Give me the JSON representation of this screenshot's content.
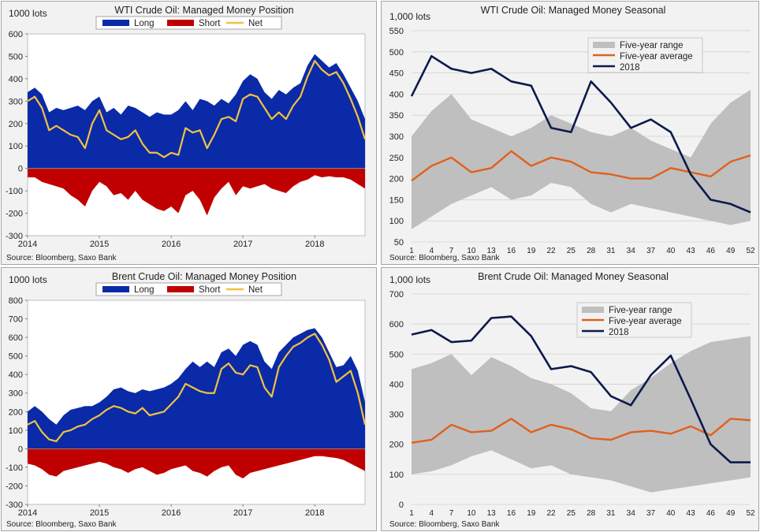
{
  "colors": {
    "long": "#0a2aa8",
    "short": "#c00000",
    "net": "#f3c23e",
    "range": "#bfbfbf",
    "avg": "#e0601c",
    "y2018": "#0c1a4c",
    "grid": "#d0d0d0"
  },
  "source": "Source: Bloomberg, Saxo Bank",
  "chart_data": [
    {
      "id": "wti_position",
      "type": "area",
      "title": "WTI Crude Oil: Managed Money Position",
      "unit": "1000 lots",
      "ylim": [
        -300,
        600
      ],
      "yticks": [
        -300,
        -200,
        -100,
        0,
        100,
        200,
        300,
        400,
        500,
        600
      ],
      "xlim": [
        2014.0,
        2018.7
      ],
      "xticks": [
        "2014",
        "2015",
        "2016",
        "2017",
        "2018"
      ],
      "legend": [
        "Long",
        "Short",
        "Net"
      ],
      "x": [
        2014.0,
        2014.1,
        2014.2,
        2014.3,
        2014.4,
        2014.5,
        2014.6,
        2014.7,
        2014.8,
        2014.9,
        2015.0,
        2015.1,
        2015.2,
        2015.3,
        2015.4,
        2015.5,
        2015.6,
        2015.7,
        2015.8,
        2015.9,
        2016.0,
        2016.1,
        2016.2,
        2016.3,
        2016.4,
        2016.5,
        2016.6,
        2016.7,
        2016.8,
        2016.9,
        2017.0,
        2017.1,
        2017.2,
        2017.3,
        2017.4,
        2017.5,
        2017.6,
        2017.7,
        2017.8,
        2017.9,
        2018.0,
        2018.1,
        2018.2,
        2018.3,
        2018.4,
        2018.5,
        2018.6,
        2018.7
      ],
      "series": [
        {
          "name": "Long",
          "values": [
            340,
            360,
            330,
            250,
            270,
            260,
            270,
            280,
            260,
            300,
            320,
            250,
            270,
            240,
            280,
            270,
            250,
            230,
            250,
            240,
            240,
            260,
            300,
            260,
            310,
            300,
            280,
            310,
            290,
            330,
            390,
            420,
            400,
            340,
            310,
            350,
            330,
            360,
            380,
            460,
            510,
            480,
            450,
            470,
            420,
            360,
            300,
            220
          ]
        },
        {
          "name": "Short",
          "values": [
            -40,
            -40,
            -60,
            -70,
            -80,
            -90,
            -120,
            -140,
            -170,
            -100,
            -60,
            -80,
            -120,
            -110,
            -140,
            -100,
            -140,
            -160,
            -180,
            -190,
            -170,
            -200,
            -120,
            -100,
            -140,
            -210,
            -130,
            -90,
            -60,
            -120,
            -80,
            -90,
            -80,
            -70,
            -90,
            -100,
            -110,
            -80,
            -60,
            -50,
            -30,
            -40,
            -35,
            -40,
            -40,
            -50,
            -70,
            -90
          ]
        },
        {
          "name": "Net",
          "values": [
            300,
            320,
            270,
            170,
            190,
            170,
            150,
            140,
            90,
            200,
            260,
            170,
            150,
            130,
            140,
            170,
            110,
            70,
            70,
            50,
            70,
            60,
            180,
            160,
            170,
            90,
            150,
            220,
            230,
            210,
            310,
            330,
            320,
            270,
            220,
            250,
            220,
            280,
            320,
            410,
            480,
            440,
            415,
            430,
            380,
            310,
            230,
            130
          ]
        }
      ]
    },
    {
      "id": "wti_seasonal",
      "type": "line",
      "title": "WTI Crude Oil: Managed Money Seasonal",
      "unit": "1,000 lots",
      "ylim": [
        50,
        550
      ],
      "yticks": [
        50,
        100,
        150,
        200,
        250,
        300,
        350,
        400,
        450,
        500,
        550
      ],
      "xlim": [
        1,
        52
      ],
      "xticks": [
        "1",
        "4",
        "7",
        "10",
        "13",
        "16",
        "19",
        "22",
        "25",
        "28",
        "31",
        "34",
        "37",
        "40",
        "43",
        "46",
        "49",
        "52"
      ],
      "legend": [
        "Five-year range",
        "Five-year average",
        "2018"
      ],
      "x": [
        1,
        4,
        7,
        10,
        13,
        16,
        19,
        22,
        25,
        28,
        31,
        34,
        37,
        40,
        43,
        46,
        49,
        52
      ],
      "series": [
        {
          "name": "Five-year range high",
          "values": [
            300,
            360,
            400,
            340,
            320,
            300,
            320,
            350,
            330,
            310,
            300,
            320,
            290,
            270,
            250,
            330,
            380,
            410
          ]
        },
        {
          "name": "Five-year range low",
          "values": [
            80,
            110,
            140,
            160,
            180,
            150,
            160,
            190,
            180,
            140,
            120,
            140,
            130,
            120,
            110,
            100,
            90,
            100
          ]
        },
        {
          "name": "Five-year average",
          "values": [
            195,
            230,
            250,
            215,
            225,
            265,
            230,
            250,
            240,
            215,
            210,
            200,
            200,
            225,
            215,
            205,
            240,
            255
          ]
        },
        {
          "name": "2018",
          "values": [
            395,
            490,
            460,
            450,
            460,
            430,
            420,
            320,
            310,
            430,
            380,
            320,
            340,
            310,
            210,
            150,
            140,
            120
          ]
        }
      ]
    },
    {
      "id": "brent_position",
      "type": "area",
      "title": "Brent Crude Oil: Managed Money Position",
      "unit": "1000 lots",
      "ylim": [
        -300,
        800
      ],
      "yticks": [
        -300,
        -200,
        -100,
        0,
        100,
        200,
        300,
        400,
        500,
        600,
        700,
        800
      ],
      "xlim": [
        2014.0,
        2018.7
      ],
      "xticks": [
        "2014",
        "2015",
        "2016",
        "2017",
        "2018"
      ],
      "legend": [
        "Long",
        "Short",
        "Net"
      ],
      "x": [
        2014.0,
        2014.1,
        2014.2,
        2014.3,
        2014.4,
        2014.5,
        2014.6,
        2014.7,
        2014.8,
        2014.9,
        2015.0,
        2015.1,
        2015.2,
        2015.3,
        2015.4,
        2015.5,
        2015.6,
        2015.7,
        2015.8,
        2015.9,
        2016.0,
        2016.1,
        2016.2,
        2016.3,
        2016.4,
        2016.5,
        2016.6,
        2016.7,
        2016.8,
        2016.9,
        2017.0,
        2017.1,
        2017.2,
        2017.3,
        2017.4,
        2017.5,
        2017.6,
        2017.7,
        2017.8,
        2017.9,
        2018.0,
        2018.1,
        2018.2,
        2018.3,
        2018.4,
        2018.5,
        2018.6,
        2018.7
      ],
      "series": [
        {
          "name": "Long",
          "values": [
            200,
            230,
            200,
            160,
            130,
            180,
            210,
            220,
            230,
            230,
            250,
            280,
            320,
            330,
            310,
            300,
            320,
            310,
            320,
            330,
            350,
            380,
            430,
            470,
            440,
            470,
            440,
            520,
            540,
            500,
            560,
            580,
            560,
            470,
            430,
            520,
            560,
            600,
            620,
            640,
            650,
            600,
            520,
            440,
            450,
            500,
            420,
            250
          ]
        },
        {
          "name": "Short",
          "values": [
            -80,
            -90,
            -110,
            -140,
            -150,
            -120,
            -110,
            -100,
            -90,
            -80,
            -70,
            -80,
            -100,
            -110,
            -130,
            -110,
            -100,
            -120,
            -140,
            -130,
            -110,
            -100,
            -90,
            -120,
            -130,
            -150,
            -120,
            -100,
            -90,
            -140,
            -160,
            -130,
            -120,
            -110,
            -100,
            -90,
            -80,
            -70,
            -60,
            -50,
            -40,
            -40,
            -45,
            -50,
            -60,
            -80,
            -100,
            -120
          ]
        },
        {
          "name": "Net",
          "values": [
            130,
            150,
            90,
            50,
            40,
            90,
            100,
            120,
            130,
            160,
            180,
            210,
            230,
            220,
            200,
            190,
            220,
            180,
            190,
            200,
            240,
            280,
            350,
            330,
            310,
            300,
            300,
            430,
            460,
            410,
            400,
            450,
            440,
            330,
            280,
            440,
            500,
            550,
            570,
            600,
            620,
            560,
            480,
            360,
            390,
            420,
            300,
            130
          ]
        }
      ]
    },
    {
      "id": "brent_seasonal",
      "type": "line",
      "title": "Brent Crude Oil: Managed Money Seasonal",
      "unit": "1,000 lots",
      "ylim": [
        0,
        700
      ],
      "yticks": [
        0,
        100,
        200,
        300,
        400,
        500,
        600,
        700
      ],
      "xlim": [
        1,
        52
      ],
      "xticks": [
        "1",
        "4",
        "7",
        "10",
        "13",
        "16",
        "19",
        "22",
        "25",
        "28",
        "31",
        "34",
        "37",
        "40",
        "43",
        "46",
        "49",
        "52"
      ],
      "legend": [
        "Five-year range",
        "Five-year average",
        "2018"
      ],
      "x": [
        1,
        4,
        7,
        10,
        13,
        16,
        19,
        22,
        25,
        28,
        31,
        34,
        37,
        40,
        43,
        46,
        49,
        52
      ],
      "series": [
        {
          "name": "Five-year range high",
          "values": [
            450,
            470,
            500,
            430,
            490,
            460,
            420,
            400,
            370,
            320,
            310,
            380,
            420,
            470,
            510,
            540,
            550,
            560
          ]
        },
        {
          "name": "Five-year range low",
          "values": [
            100,
            110,
            130,
            160,
            180,
            150,
            120,
            130,
            100,
            90,
            80,
            60,
            40,
            50,
            60,
            70,
            80,
            90
          ]
        },
        {
          "name": "Five-year average",
          "values": [
            205,
            215,
            265,
            240,
            245,
            285,
            240,
            265,
            250,
            220,
            215,
            240,
            245,
            235,
            260,
            230,
            285,
            280
          ]
        },
        {
          "name": "2018",
          "values": [
            565,
            580,
            540,
            545,
            620,
            625,
            560,
            450,
            460,
            440,
            360,
            330,
            430,
            495,
            350,
            200,
            140,
            140
          ]
        }
      ]
    }
  ]
}
